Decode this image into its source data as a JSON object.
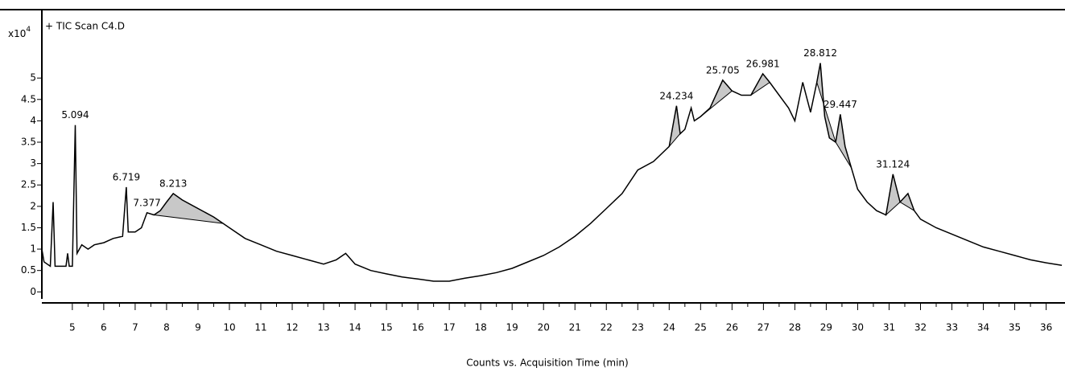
{
  "chart_data": {
    "type": "line",
    "title": "+ TIC Scan C4.D",
    "y_multiplier": "x10",
    "y_exponent": "4",
    "xlabel": "Counts vs. Acquisition Time (min)",
    "color": "#000000",
    "fill_color": "#c8c8c8",
    "x": [
      4.03,
      4.1,
      4.3,
      4.39,
      4.45,
      4.6,
      4.8,
      4.85,
      4.9,
      5.0,
      5.094,
      5.15,
      5.3,
      5.5,
      5.7,
      6.0,
      6.3,
      6.6,
      6.719,
      6.78,
      7.0,
      7.2,
      7.377,
      7.6,
      7.8,
      8.0,
      8.213,
      8.5,
      9.0,
      9.5,
      10.0,
      10.5,
      11.0,
      11.5,
      12.0,
      12.5,
      13.0,
      13.4,
      13.7,
      14.0,
      14.5,
      15.0,
      15.5,
      16.0,
      16.5,
      17.0,
      17.5,
      18.0,
      18.5,
      19.0,
      19.5,
      20.0,
      20.5,
      21.0,
      21.5,
      22.0,
      22.5,
      23.0,
      23.5,
      24.0,
      24.234,
      24.35,
      24.5,
      24.7,
      24.8,
      25.0,
      25.3,
      25.705,
      26.0,
      26.3,
      26.6,
      26.981,
      27.2,
      27.5,
      27.8,
      28.0,
      28.25,
      28.5,
      28.7,
      28.812,
      28.95,
      29.1,
      29.3,
      29.447,
      29.6,
      29.8,
      30.0,
      30.3,
      30.6,
      30.9,
      31.124,
      31.35,
      31.6,
      31.8,
      32.0,
      32.5,
      33.0,
      33.5,
      34.0,
      34.5,
      35.0,
      35.5,
      36.0,
      36.5
    ],
    "values": [
      1.0,
      0.7,
      0.6,
      2.1,
      0.6,
      0.6,
      0.6,
      0.9,
      0.6,
      0.6,
      3.9,
      0.9,
      1.1,
      1.0,
      1.1,
      1.15,
      1.25,
      1.3,
      2.45,
      1.4,
      1.4,
      1.5,
      1.85,
      1.8,
      1.9,
      2.1,
      2.3,
      2.15,
      1.95,
      1.75,
      1.5,
      1.25,
      1.1,
      0.95,
      0.85,
      0.75,
      0.65,
      0.75,
      0.9,
      0.65,
      0.5,
      0.42,
      0.35,
      0.3,
      0.25,
      0.25,
      0.32,
      0.38,
      0.45,
      0.55,
      0.7,
      0.85,
      1.05,
      1.3,
      1.6,
      1.95,
      2.3,
      2.85,
      3.05,
      3.4,
      4.35,
      3.7,
      3.8,
      4.3,
      4.0,
      4.1,
      4.3,
      4.95,
      4.7,
      4.6,
      4.6,
      5.1,
      4.9,
      4.6,
      4.3,
      4.0,
      4.9,
      4.2,
      4.9,
      5.35,
      4.1,
      3.6,
      3.5,
      4.15,
      3.4,
      2.9,
      2.4,
      2.1,
      1.9,
      1.8,
      2.75,
      2.1,
      2.3,
      1.9,
      1.7,
      1.5,
      1.35,
      1.2,
      1.05,
      0.95,
      0.85,
      0.75,
      0.68,
      0.62
    ],
    "peaks": [
      5.094,
      6.719,
      7.377,
      8.213,
      24.234,
      25.705,
      26.981,
      28.812,
      29.447,
      31.124
    ],
    "integrated_regions": [
      {
        "start": 7.6,
        "end": 9.8
      },
      {
        "start": 24.0,
        "end": 24.35
      },
      {
        "start": 25.0,
        "end": 26.0
      },
      {
        "start": 26.6,
        "end": 27.2
      },
      {
        "start": 28.7,
        "end": 29.3
      },
      {
        "start": 29.3,
        "end": 29.8
      },
      {
        "start": 30.9,
        "end": 31.35
      },
      {
        "start": 31.35,
        "end": 31.8
      }
    ],
    "xlim": [
      4.03,
      36.6
    ],
    "ylim": [
      -0.22,
      6.6
    ],
    "xticks": [
      5,
      6,
      7,
      8,
      9,
      10,
      11,
      12,
      13,
      14,
      15,
      16,
      17,
      18,
      19,
      20,
      21,
      22,
      23,
      24,
      25,
      26,
      27,
      28,
      29,
      30,
      31,
      32,
      33,
      34,
      35,
      36
    ],
    "yticks": [
      0,
      0.5,
      1,
      1.5,
      2,
      2.5,
      3,
      3.5,
      4,
      4.5,
      5
    ]
  }
}
